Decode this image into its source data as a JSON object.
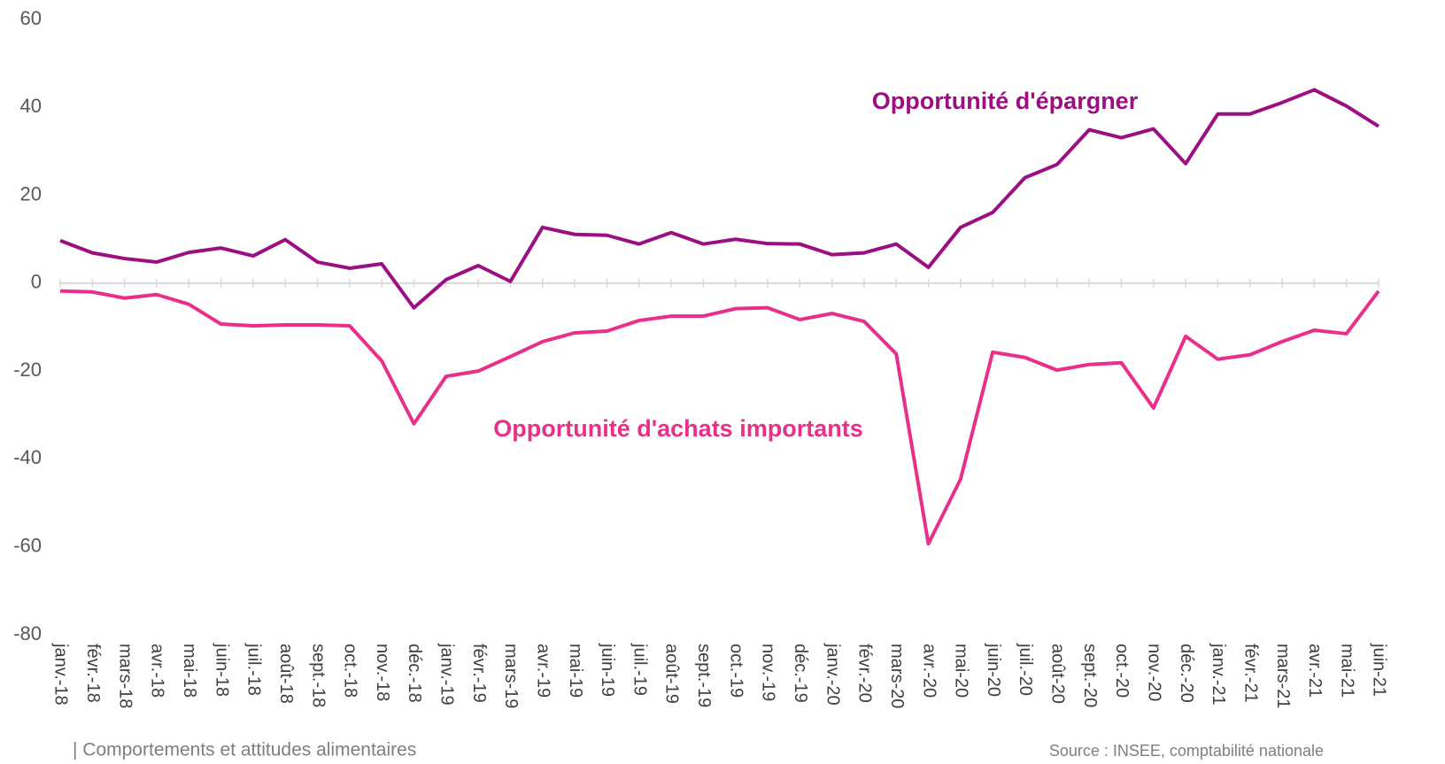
{
  "chart_data": {
    "type": "line",
    "categories": [
      "janv.-18",
      "févr.-18",
      "mars-18",
      "avr.-18",
      "mai-18",
      "juin-18",
      "juil.-18",
      "août-18",
      "sept.-18",
      "oct.-18",
      "nov.-18",
      "déc.-18",
      "janv.-19",
      "févr.-19",
      "mars-19",
      "avr.-19",
      "mai-19",
      "juin-19",
      "juil.-19",
      "août-19",
      "sept.-19",
      "oct.-19",
      "nov.-19",
      "déc.-19",
      "janv.-20",
      "févr.-20",
      "mars-20",
      "avr.-20",
      "mai-20",
      "juin-20",
      "juil.-20",
      "août-20",
      "sept.-20",
      "oct.-20",
      "nov.-20",
      "déc.-20",
      "janv.-21",
      "févr.-21",
      "mars-21",
      "avr.-21",
      "mai-21",
      "juin-21"
    ],
    "series": [
      {
        "name": "Opportunité d'épargner",
        "color": "#9b0f82",
        "values": [
          9.7,
          6.9,
          5.6,
          4.8,
          7,
          8,
          6.2,
          9.9,
          4.8,
          3.4,
          4.4,
          -5.6,
          0.8,
          4,
          0.4,
          12.7,
          11.1,
          10.9,
          8.9,
          11.5,
          8.9,
          10,
          9,
          8.9,
          6.5,
          6.9,
          8.9,
          3.6,
          12.7,
          16.1,
          24,
          27,
          34.9,
          33.1,
          35.1,
          27.2,
          38.5,
          38.5,
          41.1,
          44,
          40.3,
          35.7
        ]
      },
      {
        "name": "Opportunité d'achats importants",
        "color": "#e8308a",
        "values": [
          -1.8,
          -2,
          -3.4,
          -2.6,
          -4.8,
          -9.3,
          -9.7,
          -9.5,
          -9.5,
          -9.7,
          -17.7,
          -32,
          -21.2,
          -20,
          -16.7,
          -13.3,
          -11.3,
          -10.9,
          -8.5,
          -7.5,
          -7.5,
          -5.8,
          -5.6,
          -8.3,
          -6.9,
          -8.7,
          -16.1,
          -59.3,
          -44.6,
          -15.7,
          -16.9,
          -19.8,
          -18.5,
          -18.1,
          -28.4,
          -12.1,
          -17.3,
          -16.3,
          -13.3,
          -10.7,
          -11.5,
          -1.8
        ]
      }
    ],
    "ylim": [
      -80,
      60
    ],
    "yticks": [
      -80,
      -60,
      -40,
      -20,
      0,
      20,
      40,
      60
    ]
  },
  "footer": {
    "left": "| Comportements et attitudes alimentaires",
    "right": "Source : INSEE, comptabilité nationale"
  }
}
